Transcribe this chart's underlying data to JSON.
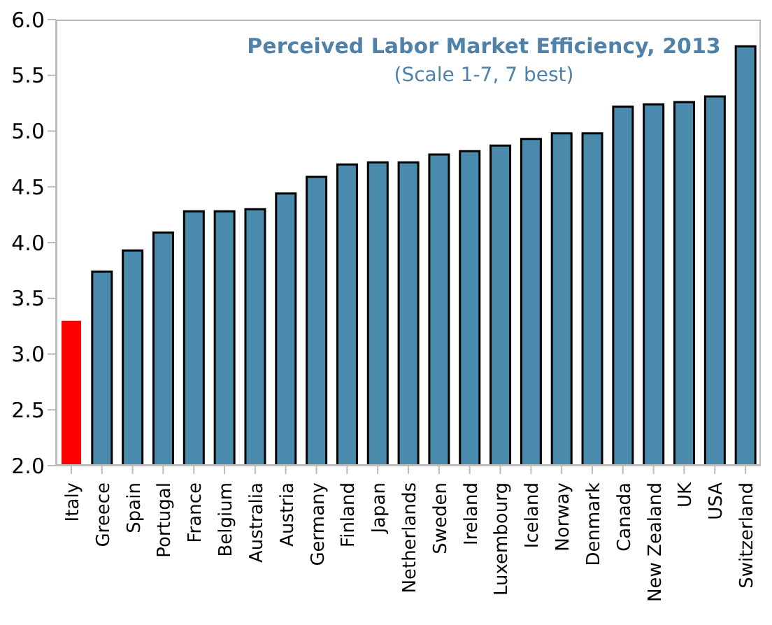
{
  "chart_data": {
    "type": "bar",
    "title": "Perceived Labor Market Efficiency, 2013",
    "subtitle": "(Scale 1-7, 7 best)",
    "categories": [
      "Italy",
      "Greece",
      "Spain",
      "Portugal",
      "France",
      "Belgium",
      "Australia",
      "Austria",
      "Germany",
      "Finland",
      "Japan",
      "Netherlands",
      "Sweden",
      "Ireland",
      "Luxembourg",
      "Iceland",
      "Norway",
      "Denmark",
      "Canada",
      "New Zealand",
      "UK",
      "USA",
      "Switzerland"
    ],
    "values": [
      3.3,
      3.74,
      3.93,
      4.09,
      4.28,
      4.28,
      4.3,
      4.44,
      4.59,
      4.7,
      4.72,
      4.72,
      4.79,
      4.82,
      4.87,
      4.93,
      4.98,
      4.98,
      5.22,
      5.24,
      5.26,
      5.31,
      5.76
    ],
    "colors": [
      "#ff0000",
      "#4a8bad",
      "#4a8bad",
      "#4a8bad",
      "#4a8bad",
      "#4a8bad",
      "#4a8bad",
      "#4a8bad",
      "#4a8bad",
      "#4a8bad",
      "#4a8bad",
      "#4a8bad",
      "#4a8bad",
      "#4a8bad",
      "#4a8bad",
      "#4a8bad",
      "#4a8bad",
      "#4a8bad",
      "#4a8bad",
      "#4a8bad",
      "#4a8bad",
      "#4a8bad",
      "#4a8bad"
    ],
    "ylim": [
      2,
      6
    ],
    "yticks": [
      {
        "value": 2,
        "label": "2.0"
      },
      2.5,
      {
        "value": 3,
        "label": "3.0"
      },
      3.5,
      {
        "value": 4,
        "label": "4.0"
      },
      4.5,
      {
        "value": 5,
        "label": "5.0"
      },
      5.5,
      {
        "value": 6,
        "label": "6.0"
      }
    ],
    "grid": false,
    "legend": false
  }
}
